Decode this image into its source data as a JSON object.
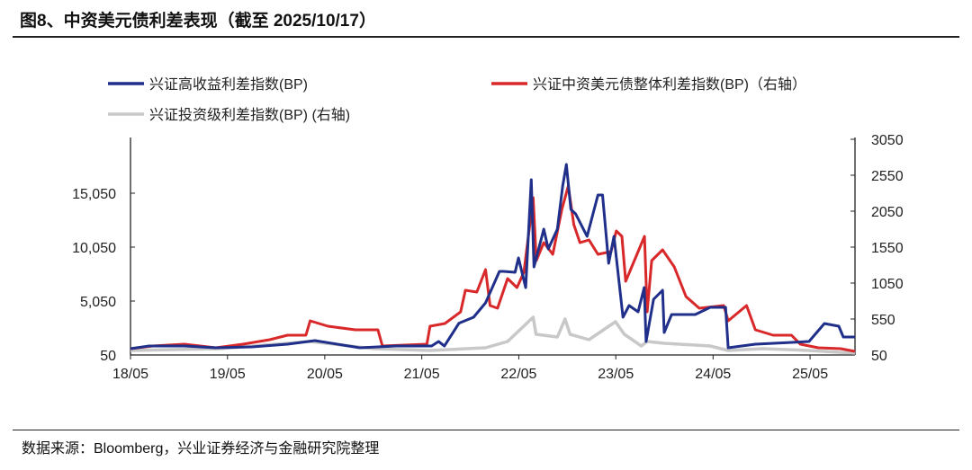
{
  "title": "图8、中资美元债利差表现（截至 2025/10/17）",
  "footnote": "数据来源：Bloomberg，兴业证券经济与金融研究院整理",
  "chart_data": {
    "type": "line",
    "title": "图8、中资美元债利差表现（截至 2025/10/17）",
    "xlim": [
      "2018-05-01",
      "2025-10-17"
    ],
    "x_ticks": [
      "18/05",
      "19/05",
      "20/05",
      "21/05",
      "22/05",
      "23/05",
      "24/05",
      "25/05"
    ],
    "x_tick_dates": [
      "2018-05-01",
      "2019-05-01",
      "2020-05-01",
      "2021-05-01",
      "2022-05-01",
      "2023-05-01",
      "2024-05-01",
      "2025-05-01"
    ],
    "y_left": {
      "lim": [
        50,
        20050
      ],
      "ticks": [
        "50",
        "5,050",
        "10,050",
        "15,050"
      ],
      "tick_values": [
        50,
        5050,
        10050,
        15050
      ]
    },
    "y_right": {
      "lim": [
        50,
        3050
      ],
      "ticks": [
        "50",
        "550",
        "1050",
        "1550",
        "2050",
        "2550",
        "3050"
      ],
      "tick_values": [
        50,
        550,
        1050,
        1550,
        2050,
        2550,
        3050
      ]
    },
    "grid": false,
    "legend_placement": "top",
    "series": [
      {
        "name": "兴证高收益利差指数(BP)",
        "axis": "left",
        "color": "#1f2f8a",
        "points": [
          [
            "2018-05-01",
            633
          ],
          [
            "2018-07-10",
            883
          ],
          [
            "2018-11-20",
            883
          ],
          [
            "2019-03-18",
            717
          ],
          [
            "2019-08-01",
            800
          ],
          [
            "2019-12-13",
            1050
          ],
          [
            "2020-03-25",
            1383
          ],
          [
            "2020-09-10",
            717
          ],
          [
            "2021-01-24",
            883
          ],
          [
            "2021-06-07",
            883
          ],
          [
            "2021-07-03",
            1300
          ],
          [
            "2021-07-25",
            883
          ],
          [
            "2021-09-18",
            3000
          ],
          [
            "2021-11-12",
            3550
          ],
          [
            "2021-12-27",
            4883
          ],
          [
            "2022-02-17",
            7800
          ],
          [
            "2022-03-05",
            7800
          ],
          [
            "2022-04-17",
            7717
          ],
          [
            "2022-04-30",
            9050
          ],
          [
            "2022-05-27",
            6300
          ],
          [
            "2022-06-17",
            16300
          ],
          [
            "2022-06-27",
            8217
          ],
          [
            "2022-08-03",
            11717
          ],
          [
            "2022-08-20",
            9883
          ],
          [
            "2022-09-23",
            11717
          ],
          [
            "2022-10-13",
            15717
          ],
          [
            "2022-10-27",
            17717
          ],
          [
            "2022-11-13",
            13550
          ],
          [
            "2022-12-01",
            13133
          ],
          [
            "2023-01-13",
            11050
          ],
          [
            "2023-02-23",
            14883
          ],
          [
            "2023-03-12",
            14883
          ],
          [
            "2023-04-04",
            8550
          ],
          [
            "2023-04-24",
            11050
          ],
          [
            "2023-05-28",
            3550
          ],
          [
            "2023-06-20",
            4633
          ],
          [
            "2023-07-24",
            4050
          ],
          [
            "2023-08-16",
            6300
          ],
          [
            "2023-08-23",
            1300
          ],
          [
            "2023-09-20",
            5217
          ],
          [
            "2023-10-24",
            6050
          ],
          [
            "2023-10-30",
            2133
          ],
          [
            "2023-11-27",
            3800
          ],
          [
            "2024-02-24",
            3800
          ],
          [
            "2024-04-20",
            4467
          ],
          [
            "2024-06-17",
            4467
          ],
          [
            "2024-06-27",
            717
          ],
          [
            "2024-10-07",
            1050
          ],
          [
            "2025-04-27",
            1300
          ],
          [
            "2025-06-24",
            2967
          ],
          [
            "2025-08-17",
            2717
          ],
          [
            "2025-09-03",
            1717
          ],
          [
            "2025-10-17",
            1717
          ]
        ]
      },
      {
        "name": "兴证中资美元债整体利差指数(BP)（右轴）",
        "axis": "right",
        "color": "#d8282a",
        "points": [
          [
            "2018-05-01",
            138
          ],
          [
            "2018-07-24",
            175
          ],
          [
            "2018-11-20",
            200
          ],
          [
            "2019-03-18",
            150
          ],
          [
            "2019-06-28",
            200
          ],
          [
            "2019-10-07",
            263
          ],
          [
            "2019-12-13",
            325
          ],
          [
            "2020-02-20",
            325
          ],
          [
            "2020-03-07",
            525
          ],
          [
            "2020-05-13",
            450
          ],
          [
            "2020-08-24",
            400
          ],
          [
            "2020-11-17",
            400
          ],
          [
            "2020-12-04",
            175
          ],
          [
            "2021-05-20",
            200
          ],
          [
            "2021-06-01",
            450
          ],
          [
            "2021-07-27",
            488
          ],
          [
            "2021-09-24",
            650
          ],
          [
            "2021-10-12",
            950
          ],
          [
            "2021-11-24",
            925
          ],
          [
            "2021-12-27",
            1238
          ],
          [
            "2022-01-13",
            738
          ],
          [
            "2022-02-10",
            700
          ],
          [
            "2022-03-20",
            1113
          ],
          [
            "2022-04-24",
            988
          ],
          [
            "2022-05-20",
            1200
          ],
          [
            "2022-06-24",
            2238
          ],
          [
            "2022-07-06",
            1363
          ],
          [
            "2022-08-03",
            1613
          ],
          [
            "2022-09-06",
            1450
          ],
          [
            "2022-10-10",
            2075
          ],
          [
            "2022-11-03",
            2400
          ],
          [
            "2022-11-24",
            1863
          ],
          [
            "2022-12-17",
            1613
          ],
          [
            "2023-01-20",
            1650
          ],
          [
            "2023-02-23",
            1450
          ],
          [
            "2023-04-13",
            1488
          ],
          [
            "2023-05-03",
            1775
          ],
          [
            "2023-05-24",
            1700
          ],
          [
            "2023-06-07",
            1075
          ],
          [
            "2023-07-24",
            1488
          ],
          [
            "2023-08-17",
            1700
          ],
          [
            "2023-08-27",
            650
          ],
          [
            "2023-09-13",
            1363
          ],
          [
            "2023-10-24",
            1513
          ],
          [
            "2023-12-07",
            1275
          ],
          [
            "2024-01-20",
            863
          ],
          [
            "2024-03-10",
            700
          ],
          [
            "2024-06-10",
            738
          ],
          [
            "2024-06-27",
            525
          ],
          [
            "2024-09-04",
            738
          ],
          [
            "2024-10-07",
            400
          ],
          [
            "2024-12-13",
            325
          ],
          [
            "2025-02-20",
            325
          ],
          [
            "2025-03-25",
            200
          ],
          [
            "2025-06-01",
            150
          ],
          [
            "2025-08-24",
            138
          ],
          [
            "2025-10-17",
            100
          ]
        ]
      },
      {
        "name": "兴证投资级利差指数(BP) (右轴)",
        "axis": "right",
        "color": "#c8c8c8",
        "points": [
          [
            "2018-05-01",
            113
          ],
          [
            "2019-04-01",
            138
          ],
          [
            "2020-03-07",
            238
          ],
          [
            "2020-11-01",
            138
          ],
          [
            "2021-06-01",
            113
          ],
          [
            "2021-12-27",
            150
          ],
          [
            "2022-03-20",
            238
          ],
          [
            "2022-06-24",
            575
          ],
          [
            "2022-07-05",
            338
          ],
          [
            "2022-09-23",
            300
          ],
          [
            "2022-10-22",
            550
          ],
          [
            "2022-11-10",
            338
          ],
          [
            "2023-01-20",
            263
          ],
          [
            "2023-04-30",
            513
          ],
          [
            "2023-06-02",
            338
          ],
          [
            "2023-08-05",
            175
          ],
          [
            "2023-08-27",
            238
          ],
          [
            "2023-10-30",
            213
          ],
          [
            "2024-04-20",
            175
          ],
          [
            "2024-06-27",
            113
          ],
          [
            "2024-11-05",
            138
          ],
          [
            "2025-04-27",
            113
          ],
          [
            "2025-10-17",
            75
          ]
        ]
      }
    ]
  }
}
